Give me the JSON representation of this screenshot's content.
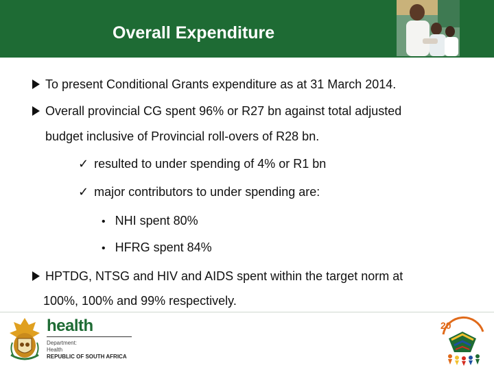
{
  "header": {
    "title": "Overall Expenditure",
    "color": "#1e6b34"
  },
  "bullets": {
    "line1": "To present Conditional Grants expenditure as at 31 March 2014.",
    "line2a": "Overall provincial CG spent 96% or R27 bn against total adjusted",
    "line2b": "budget inclusive of Provincial roll-overs of R28 bn.",
    "check1": "resulted to under spending of 4% or R1 bn",
    "check2": "major contributors to under spending are:",
    "dot1": "NHI spent  80%",
    "dot2": "HFRG spent 84%",
    "line3a": "HPTDG, NTSG and HIV and AIDS spent within the target norm at",
    "line3b": "100%, 100% and 99% respectively."
  },
  "footer": {
    "brand_word": "health",
    "dept_line1": "Department:",
    "dept_line2": "Health",
    "dept_line3": "REPUBLIC OF SOUTH AFRICA"
  }
}
